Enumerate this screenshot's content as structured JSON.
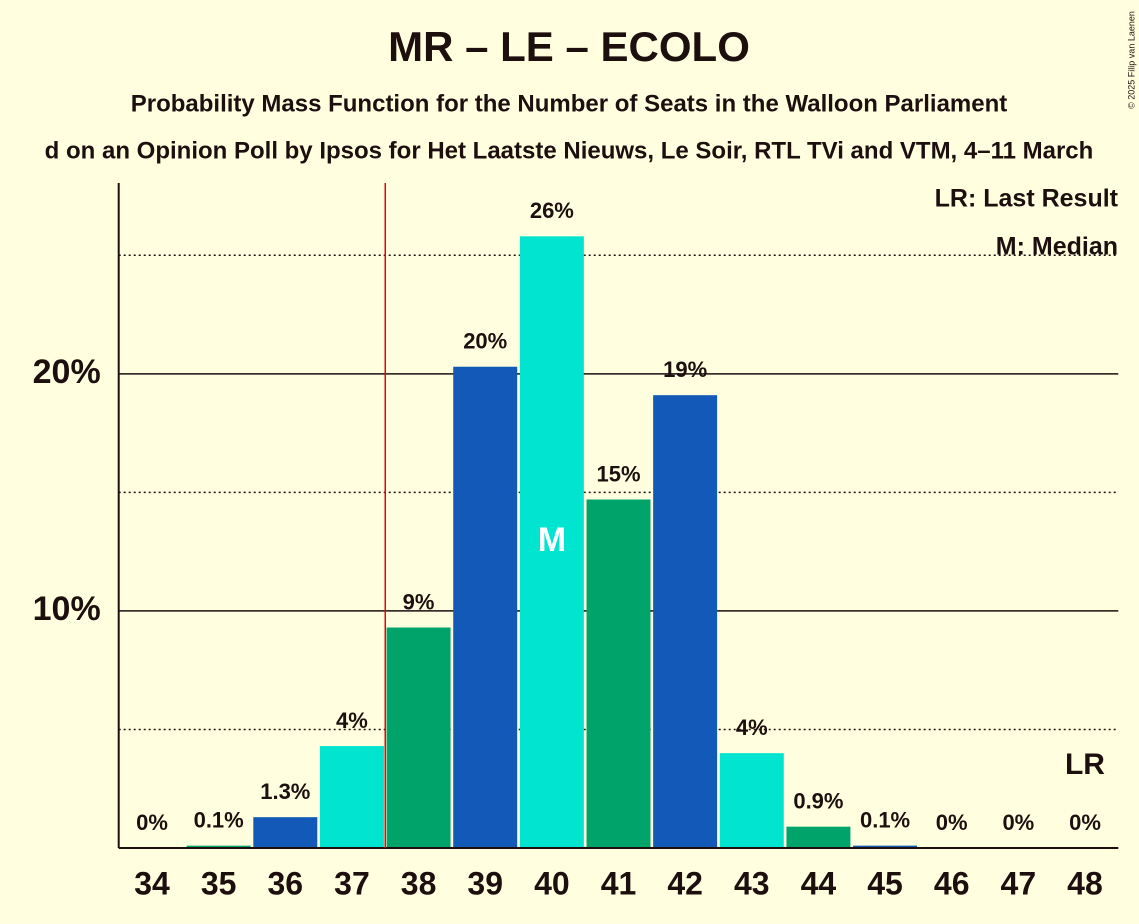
{
  "chart_data": {
    "type": "bar",
    "title": "MR – LE – ECOLO",
    "subtitle": "Probability Mass Function for the Number of Seats in the Walloon Parliament",
    "subtitle2": "d on an Opinion Poll by Ipsos for Het Laatste Nieuws, Le Soir, RTL TVi and VTM, 4–11 March",
    "copyright": "© 2025 Filip van Laenen",
    "x": [
      34,
      35,
      36,
      37,
      38,
      39,
      40,
      41,
      42,
      43,
      44,
      45,
      46,
      47,
      48
    ],
    "values": [
      0,
      0.1,
      1.3,
      4.3,
      9.3,
      20.3,
      25.8,
      14.7,
      19.1,
      4.0,
      0.9,
      0.1,
      0,
      0,
      0
    ],
    "value_labels": [
      "0%",
      "0.1%",
      "1.3%",
      "4%",
      "9%",
      "20%",
      "26%",
      "15%",
      "19%",
      "4%",
      "0.9%",
      "0.1%",
      "0%",
      "0%",
      "0%"
    ],
    "colors": [
      "#00e4d0",
      "#00a36a",
      "#1259b8",
      "#00e4d0",
      "#00a36a",
      "#1259b8",
      "#00e4d0",
      "#00a36a",
      "#1259b8",
      "#00e4d0",
      "#00a36a",
      "#1259b8",
      "#00e4d0",
      "#00a36a",
      "#1259b8"
    ],
    "xlim": [
      33.5,
      48.5
    ],
    "ylim": [
      0,
      28.05
    ],
    "yticks": [
      {
        "value": 10,
        "label": "10%"
      },
      {
        "value": 20,
        "label": "20%"
      }
    ],
    "minor_yticks": [
      5,
      15,
      25
    ],
    "grid": true,
    "last_result": 37.5,
    "last_result_color": "#e8000b",
    "lr_label": "LR",
    "median": 40,
    "median_label": "M",
    "legend": [
      "LR: Last Result",
      "M: Median"
    ]
  }
}
